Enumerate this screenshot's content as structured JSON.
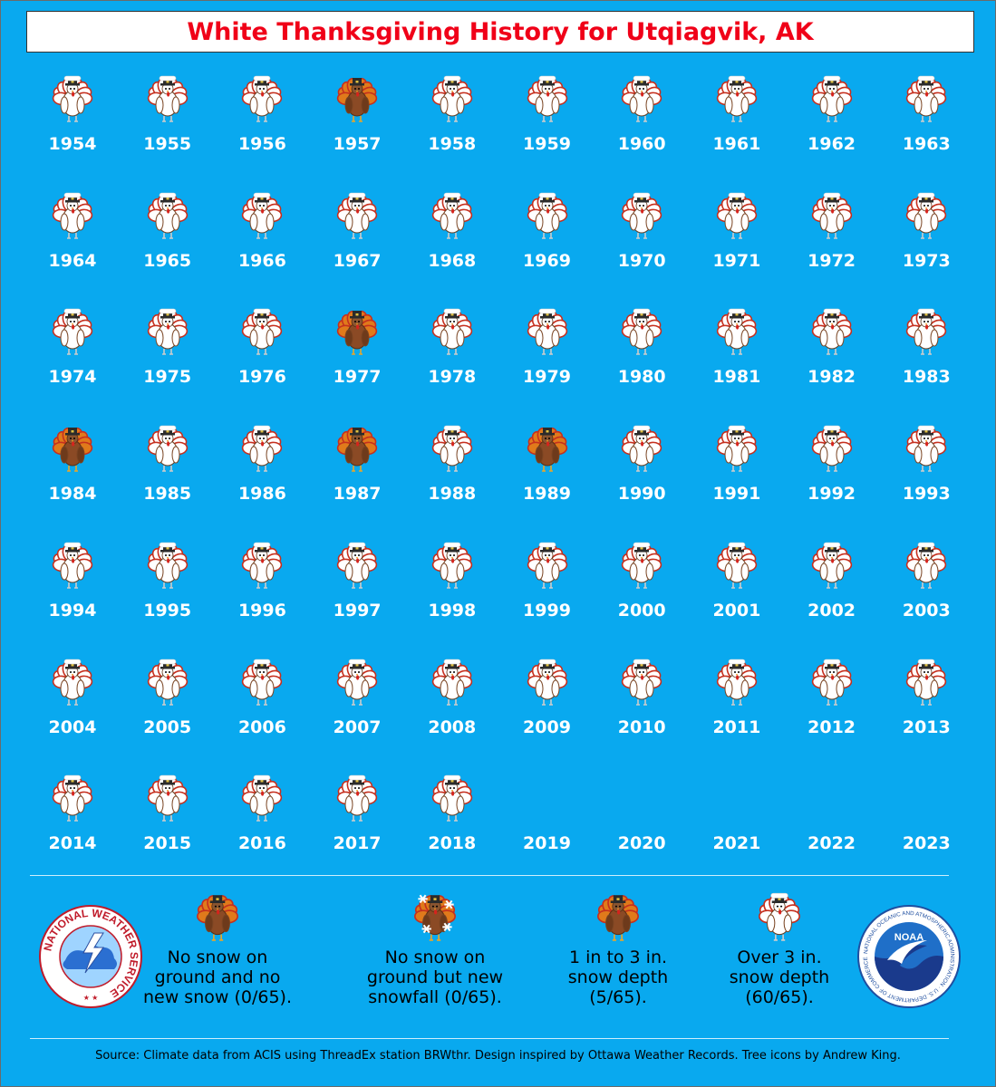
{
  "title": "White Thanksgiving History for Utqiagvik, AK",
  "chart_data": {
    "type": "table",
    "title": "White Thanksgiving History for Utqiagvik, AK",
    "category_codes": {
      "0": "No snow on ground and no new snow",
      "1": "No snow on ground but new snowfall",
      "2": "1 in to 3 in. snow depth",
      "3": "Over 3 in. snow depth",
      "-1": "no data shown"
    },
    "years": [
      1954,
      1955,
      1956,
      1957,
      1958,
      1959,
      1960,
      1961,
      1962,
      1963,
      1964,
      1965,
      1966,
      1967,
      1968,
      1969,
      1970,
      1971,
      1972,
      1973,
      1974,
      1975,
      1976,
      1977,
      1978,
      1979,
      1980,
      1981,
      1982,
      1983,
      1984,
      1985,
      1986,
      1987,
      1988,
      1989,
      1990,
      1991,
      1992,
      1993,
      1994,
      1995,
      1996,
      1997,
      1998,
      1999,
      2000,
      2001,
      2002,
      2003,
      2004,
      2005,
      2006,
      2007,
      2008,
      2009,
      2010,
      2011,
      2012,
      2013,
      2014,
      2015,
      2016,
      2017,
      2018,
      2019,
      2020,
      2021,
      2022,
      2023
    ],
    "categories": [
      3,
      3,
      3,
      2,
      3,
      3,
      3,
      3,
      3,
      3,
      3,
      3,
      3,
      3,
      3,
      3,
      3,
      3,
      3,
      3,
      3,
      3,
      3,
      2,
      3,
      3,
      3,
      3,
      3,
      3,
      2,
      3,
      3,
      2,
      3,
      2,
      3,
      3,
      3,
      3,
      3,
      3,
      3,
      3,
      3,
      3,
      3,
      3,
      3,
      3,
      3,
      3,
      3,
      3,
      3,
      3,
      3,
      3,
      3,
      3,
      3,
      3,
      3,
      3,
      3,
      -1,
      -1,
      -1,
      -1,
      -1
    ]
  },
  "legend": [
    {
      "code": 0,
      "text": "No snow on ground and no new snow (0/65)."
    },
    {
      "code": 1,
      "text": "No snow on ground but new snowfall (0/65)."
    },
    {
      "code": 2,
      "text": "1 in to 3 in. snow depth (5/65)."
    },
    {
      "code": 3,
      "text": "Over 3 in. snow depth (60/65)."
    }
  ],
  "source": "Source: Climate data from ACIS using ThreadEx station BRWthr. Design inspired by Ottawa Weather Records. Tree icons by Andrew King.",
  "logos": {
    "nws_text": "NATIONAL WEATHER SERVICE",
    "noaa_text": "NOAA",
    "noaa_ring_text": "NATIONAL OCEANIC AND ATMOSPHERIC ADMINISTRATION · U.S. DEPARTMENT OF COMMERCE"
  },
  "colors": {
    "background": "#09a9ef",
    "title": "#f00018",
    "turkey_brown": "#8b4a25",
    "feather_orange": "#e07a1b",
    "feather_red": "#c5301f"
  }
}
